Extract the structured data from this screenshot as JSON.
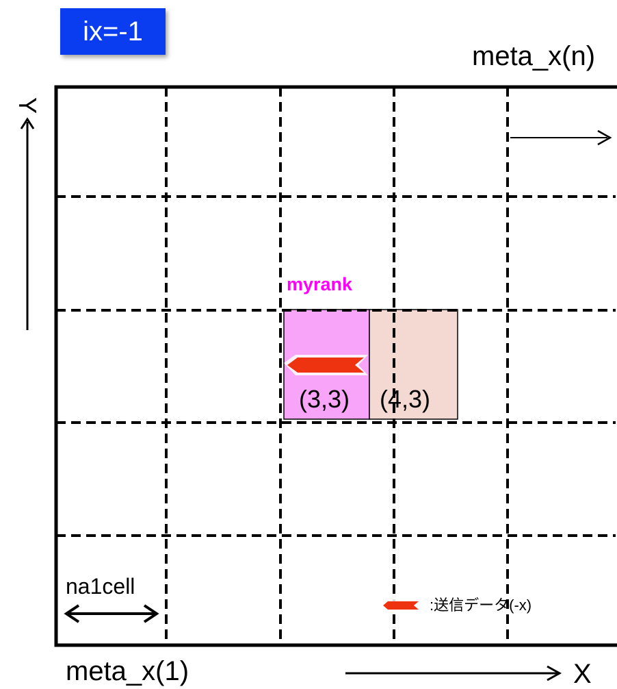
{
  "badge": {
    "text": "ix=-1",
    "color": "#0a3cf0"
  },
  "labels": {
    "meta_x_n": "meta_x(n)",
    "meta_x_1": "meta_x(1)",
    "y_axis": "Y",
    "x_axis": "X",
    "myrank": "myrank",
    "cell_a": "(3,3)",
    "cell_b": "(4,3)",
    "na1cell": "na1cell",
    "legend": ":送信データ(-x)"
  },
  "colors": {
    "myrank_text": "#ff00ff",
    "myrank_cell": "#f8a4f8",
    "neighbor_cell": "#f3d9d2",
    "send_arrow": "#ee3311"
  }
}
